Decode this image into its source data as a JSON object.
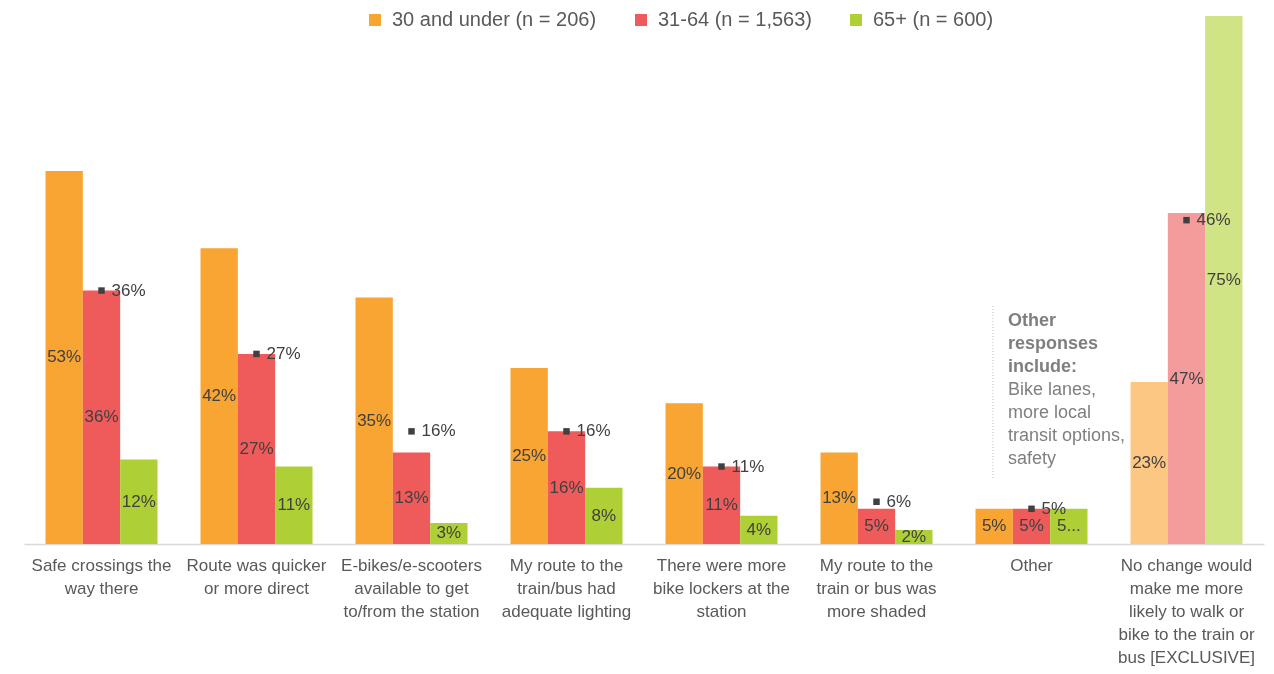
{
  "chart_data": {
    "type": "bar",
    "categories": [
      "Safe crossings the way there",
      "Route was quicker or more direct",
      "E-bikes/e-scooters available to get to/from the station",
      "My route to the train/bus had adequate lighting",
      "There were more bike lockers at the station",
      "My route to the train or bus was more shaded",
      "Other",
      "No change would make me more likely to walk or bike to the train or bus [EXCLUSIVE]"
    ],
    "series": [
      {
        "name": "30 and under (n = 206)",
        "color": "#f8a533",
        "colors": [
          "#f8a533",
          "#f8a533",
          "#f8a533",
          "#f8a533",
          "#f8a533",
          "#f8a533",
          "#f8a533",
          "#fbc783"
        ],
        "values": [
          53,
          42,
          35,
          25,
          20,
          13,
          5,
          23
        ],
        "value_labels": [
          "53%",
          "42%",
          "35%",
          "25%",
          "20%",
          "13%",
          "5%",
          "23%"
        ]
      },
      {
        "name": "31-64 (n = 1,563)",
        "color": "#ef5b5b",
        "colors": [
          "#ef5b5b",
          "#ef5b5b",
          "#ef5b5b",
          "#ef5b5b",
          "#ef5b5b",
          "#ef5b5b",
          "#ef5b5b",
          "#f49b9b"
        ],
        "values": [
          36,
          27,
          13,
          16,
          11,
          5,
          5,
          47
        ],
        "value_labels": [
          "36%",
          "27%",
          "13%",
          "16%",
          "11%",
          "5%",
          "5%",
          "47%"
        ]
      },
      {
        "name": "65+ (n = 600)",
        "color": "#aecf35",
        "colors": [
          "#aecf35",
          "#aecf35",
          "#aecf35",
          "#aecf35",
          "#aecf35",
          "#aecf35",
          "#aecf35",
          "#d0e385"
        ],
        "values": [
          12,
          11,
          3,
          8,
          4,
          2,
          5,
          75
        ],
        "value_labels": [
          "12%",
          "11%",
          "3%",
          "8%",
          "4%",
          "2%",
          "5...",
          "75%"
        ]
      },
      {
        "type": "scatter",
        "marker": "square",
        "color": "#404040",
        "x": [
          "Safe crossings the way there",
          "Route was quicker or more direct",
          "E-bikes/e-scooters available to get to/from the station",
          "My route to the train/bus had adequate lighting",
          "There were more bike lockers at the station",
          "My route to the train or bus was more shaded",
          "Other",
          "No change would make me more likely to walk or bike to the train or bus [EXCLUSIVE]"
        ],
        "values": [
          36,
          27,
          16,
          16,
          11,
          6,
          5,
          46
        ],
        "value_labels": [
          "36%",
          "27%",
          "16%",
          "16%",
          "11%",
          "6%",
          "5%",
          "46%"
        ]
      }
    ],
    "annotations": [
      "Other responses include:",
      "Bike lanes, more local transit options, safety"
    ],
    "legend": "top",
    "tick_labels": "x"
  }
}
